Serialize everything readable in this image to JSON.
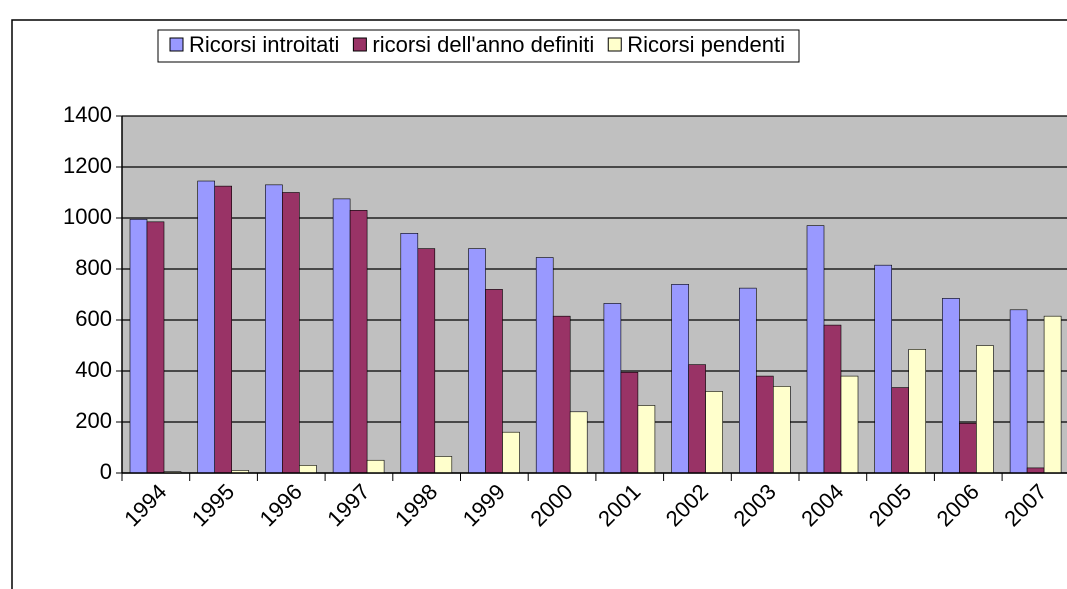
{
  "chart_data": {
    "type": "bar",
    "categories": [
      "1994",
      "1995",
      "1996",
      "1997",
      "1998",
      "1999",
      "2000",
      "2001",
      "2002",
      "2003",
      "2004",
      "2005",
      "2006",
      "2007"
    ],
    "series": [
      {
        "name": "Ricorsi introitati",
        "color": "#9999ff",
        "values": [
          995,
          1145,
          1130,
          1075,
          940,
          880,
          845,
          665,
          740,
          725,
          970,
          815,
          685,
          640
        ]
      },
      {
        "name": "ricorsi dell'anno definiti",
        "color": "#993366",
        "values": [
          985,
          1125,
          1100,
          1030,
          880,
          720,
          615,
          395,
          425,
          380,
          580,
          335,
          195,
          20
        ]
      },
      {
        "name": "Ricorsi pendenti",
        "color": "#ffffcc",
        "values": [
          5,
          10,
          30,
          50,
          65,
          160,
          240,
          265,
          320,
          340,
          380,
          485,
          500,
          615
        ]
      }
    ],
    "ylim": [
      0,
      1400
    ],
    "yticks": [
      0,
      200,
      400,
      600,
      800,
      1000,
      1200,
      1400
    ],
    "grid": true,
    "legend": "top"
  }
}
